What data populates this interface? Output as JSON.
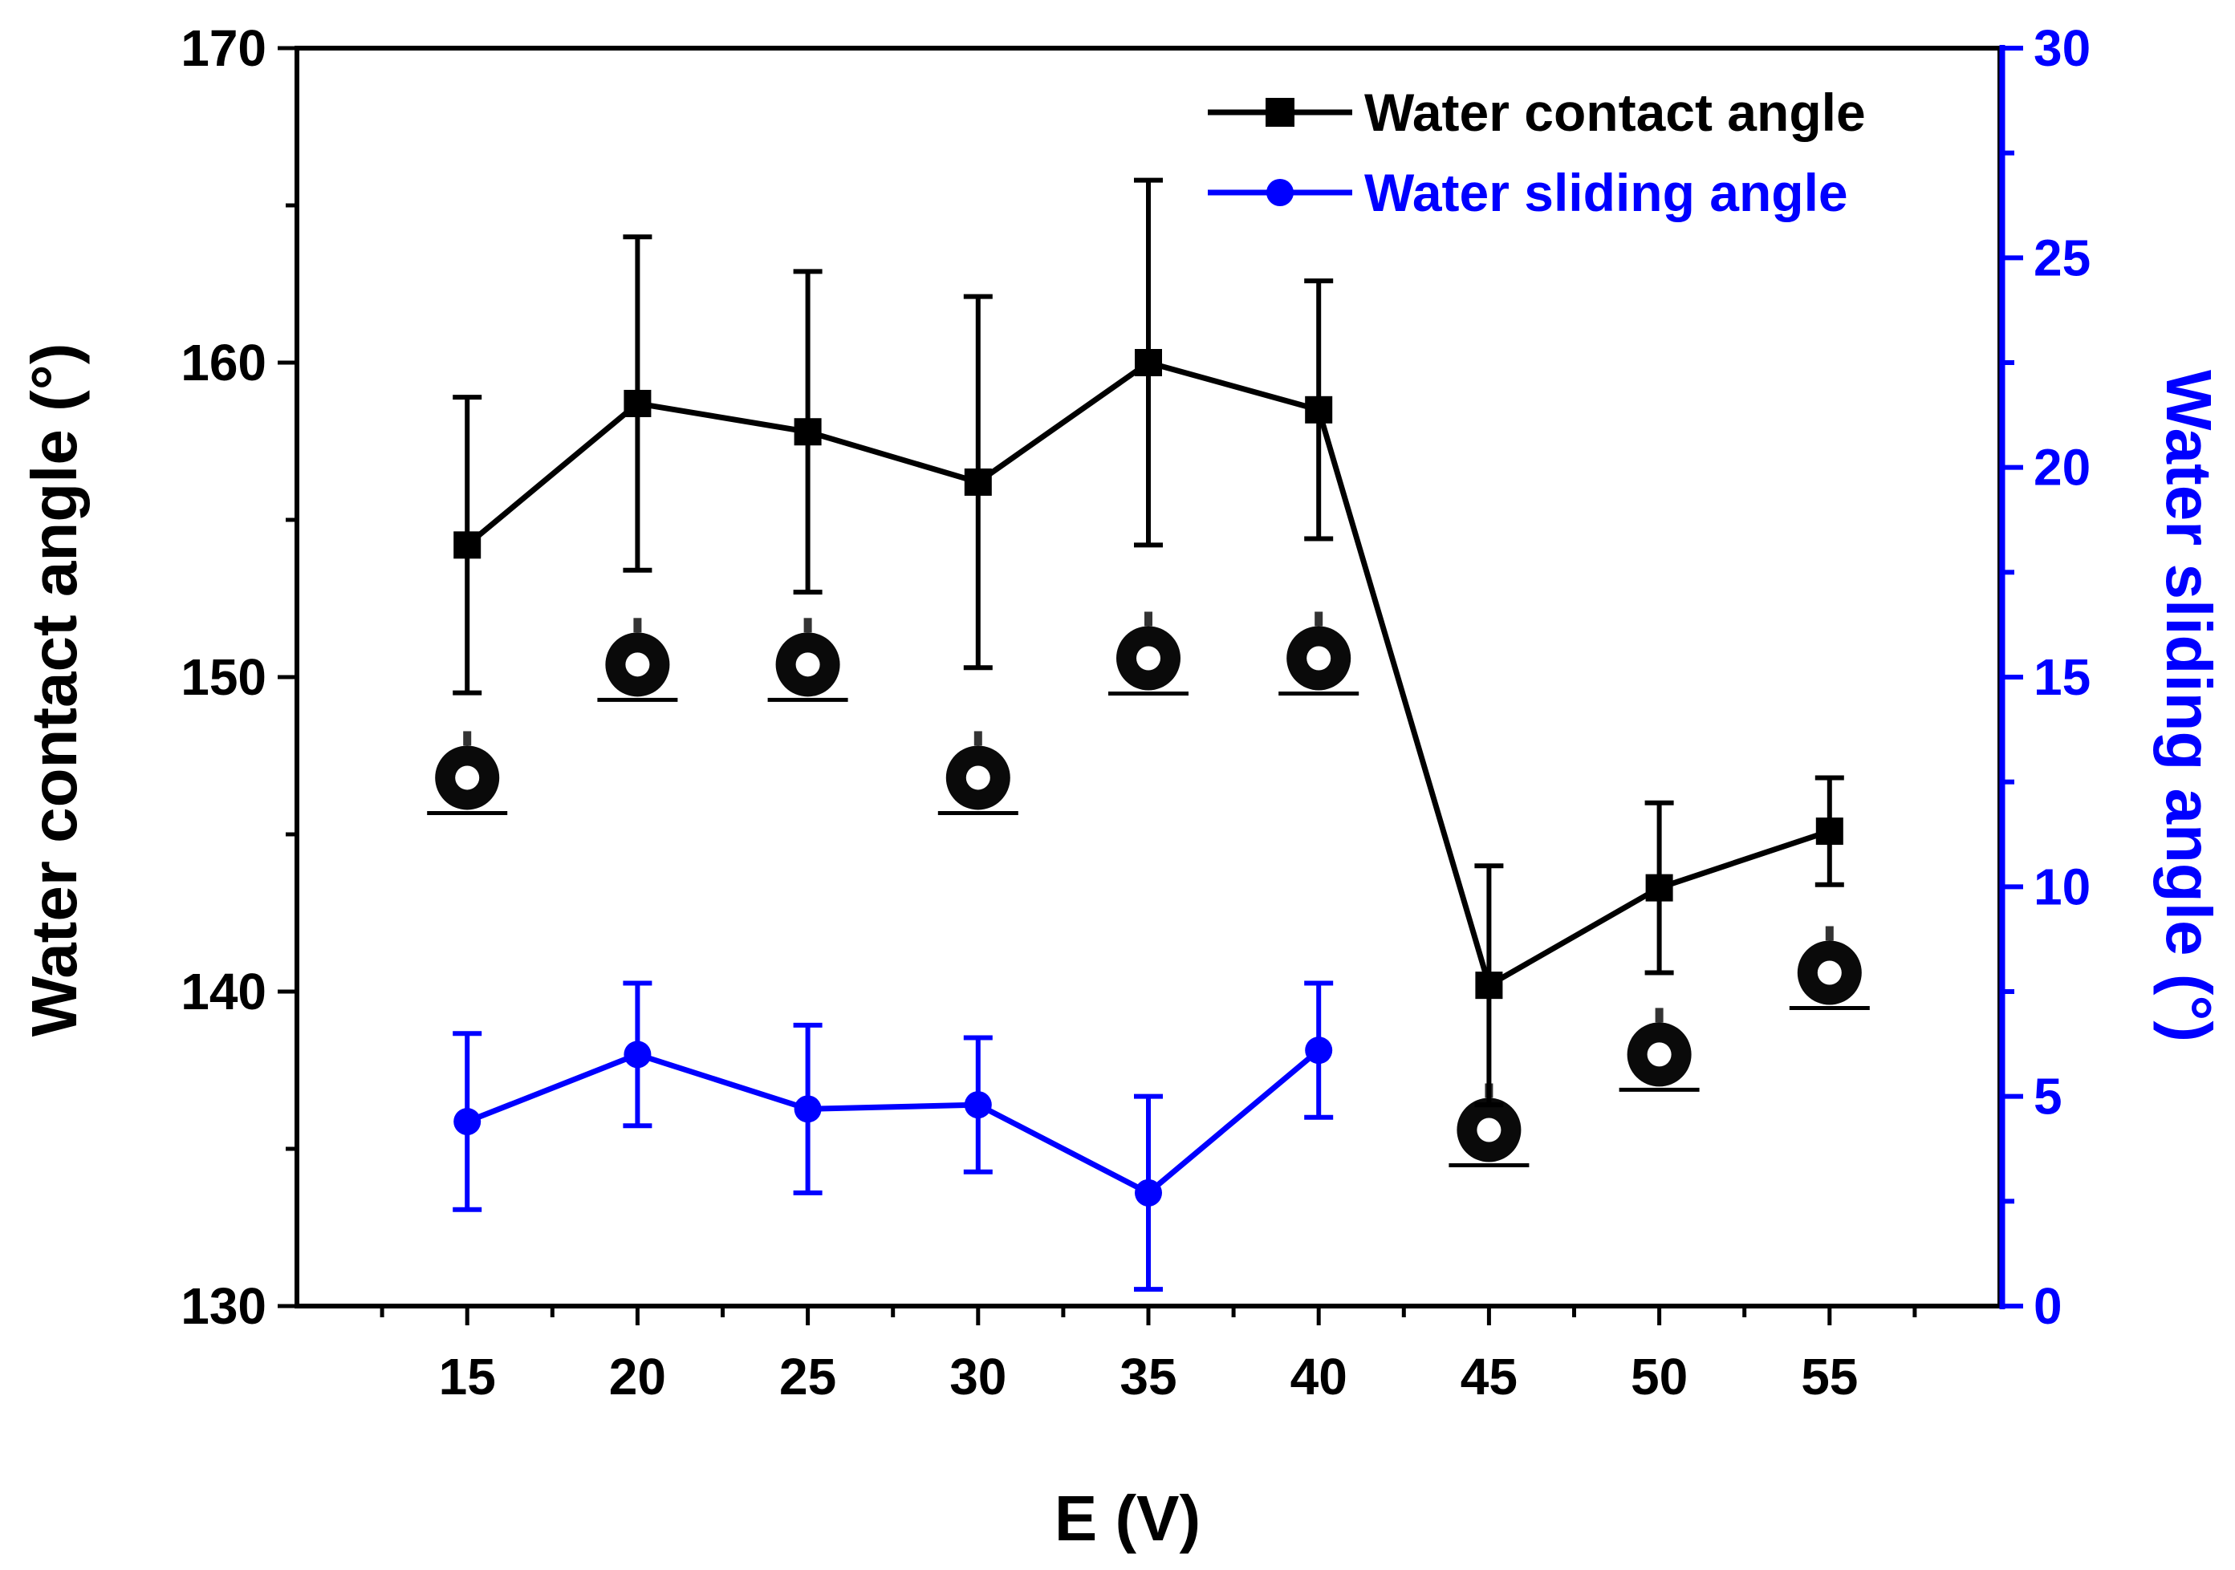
{
  "chart_data": {
    "type": "line",
    "title": "",
    "xlabel": "E (V)",
    "ylabel_left": "Water contact angle (°)",
    "ylabel_right": "Water sliding angle (°)",
    "xlim": [
      10,
      60
    ],
    "ylim_left": [
      130,
      170
    ],
    "ylim_right": [
      0,
      30
    ],
    "x_ticks": [
      15,
      20,
      25,
      30,
      35,
      40,
      45,
      50,
      55
    ],
    "y_ticks_left": [
      130,
      140,
      150,
      160,
      170
    ],
    "y_ticks_right": [
      0,
      5,
      10,
      15,
      20,
      25,
      30
    ],
    "grid": false,
    "legend_position": "top-right",
    "series": [
      {
        "name": "Water contact angle",
        "axis": "left",
        "color": "#000000",
        "marker": "square",
        "x": [
          15,
          20,
          25,
          30,
          35,
          40,
          45,
          50,
          55
        ],
        "values": [
          154.2,
          158.7,
          157.8,
          156.2,
          160.0,
          158.5,
          140.2,
          143.3,
          145.1
        ],
        "error": [
          4.7,
          5.3,
          5.1,
          5.9,
          5.8,
          4.1,
          3.8,
          2.7,
          1.7
        ]
      },
      {
        "name": "Water sliding angle",
        "axis": "right",
        "color": "#0000ff",
        "marker": "circle",
        "x": [
          15,
          20,
          25,
          30,
          35,
          40
        ],
        "values": [
          4.4,
          6.0,
          4.7,
          4.8,
          2.7,
          6.1
        ],
        "error": [
          2.1,
          1.7,
          2.0,
          1.6,
          2.3,
          1.6
        ]
      }
    ],
    "droplet_images": [
      {
        "x": 15,
        "y_left": 146.8,
        "shape": "ring"
      },
      {
        "x": 20,
        "y_left": 150.4,
        "shape": "ring"
      },
      {
        "x": 25,
        "y_left": 150.4,
        "shape": "ring"
      },
      {
        "x": 30,
        "y_left": 146.8,
        "shape": "ring"
      },
      {
        "x": 35,
        "y_left": 150.6,
        "shape": "ring"
      },
      {
        "x": 40,
        "y_left": 150.6,
        "shape": "ring"
      },
      {
        "x": 45,
        "y_left": 135.6,
        "shape": "ring"
      },
      {
        "x": 50,
        "y_left": 138.0,
        "shape": "ring"
      },
      {
        "x": 55,
        "y_left": 140.6,
        "shape": "ring"
      }
    ]
  }
}
